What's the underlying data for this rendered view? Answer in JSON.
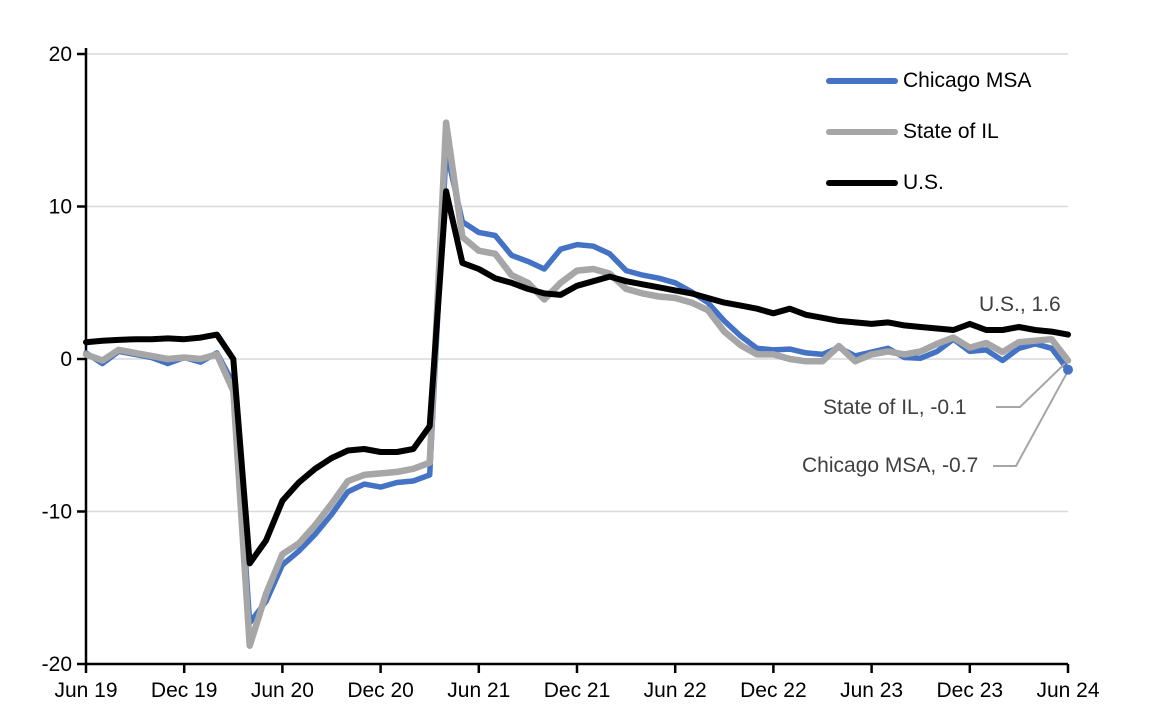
{
  "chart_data": {
    "type": "line",
    "x_monthly": [
      "2019-06",
      "2019-07",
      "2019-08",
      "2019-09",
      "2019-10",
      "2019-11",
      "2019-12",
      "2020-01",
      "2020-02",
      "2020-03",
      "2020-04",
      "2020-05",
      "2020-06",
      "2020-07",
      "2020-08",
      "2020-09",
      "2020-10",
      "2020-11",
      "2020-12",
      "2021-01",
      "2021-02",
      "2021-03",
      "2021-04",
      "2021-05",
      "2021-06",
      "2021-07",
      "2021-08",
      "2021-09",
      "2021-10",
      "2021-11",
      "2021-12",
      "2022-01",
      "2022-02",
      "2022-03",
      "2022-04",
      "2022-05",
      "2022-06",
      "2022-07",
      "2022-08",
      "2022-09",
      "2022-10",
      "2022-11",
      "2022-12",
      "2023-01",
      "2023-02",
      "2023-03",
      "2023-04",
      "2023-05",
      "2023-06",
      "2023-07",
      "2023-08",
      "2023-09",
      "2023-10",
      "2023-11",
      "2023-12",
      "2024-01",
      "2024-02",
      "2024-03",
      "2024-04",
      "2024-05",
      "2024-06"
    ],
    "x_tick_labels": [
      "Jun 19",
      "Dec 19",
      "Jun 20",
      "Dec 20",
      "Jun 21",
      "Dec 21",
      "Jun 22",
      "Dec 22",
      "Jun 23",
      "Dec 23",
      "Jun 24"
    ],
    "x_tick_indices": [
      0,
      6,
      12,
      18,
      24,
      30,
      36,
      42,
      48,
      54,
      60
    ],
    "ylim": [
      -20,
      20
    ],
    "yticks": [
      20,
      10,
      0,
      -10,
      -20
    ],
    "grid": "horizontal",
    "legend_position": "top-right-inside",
    "series": [
      {
        "name": "Chicago MSA",
        "color": "#4472C4",
        "end_value": -0.7,
        "values": [
          0.4,
          -0.3,
          0.5,
          0.3,
          0.1,
          -0.3,
          0.1,
          -0.2,
          0.4,
          -1.6,
          -17.3,
          -15.9,
          -13.5,
          -12.6,
          -11.5,
          -10.2,
          -8.7,
          -8.2,
          -8.4,
          -8.1,
          -8.0,
          -7.6,
          13.7,
          9.0,
          8.3,
          8.1,
          6.8,
          6.4,
          5.9,
          7.2,
          7.5,
          7.4,
          6.9,
          5.8,
          5.5,
          5.3,
          5.0,
          4.4,
          3.7,
          2.5,
          1.5,
          0.7,
          0.6,
          0.65,
          0.4,
          0.3,
          0.75,
          0.2,
          0.45,
          0.7,
          0.1,
          0.05,
          0.5,
          1.3,
          0.5,
          0.6,
          -0.1,
          0.7,
          1.0,
          0.7,
          -0.7
        ]
      },
      {
        "name": "State of IL",
        "color": "#A6A6A6",
        "end_value": -0.1,
        "values": [
          0.3,
          -0.1,
          0.6,
          0.4,
          0.2,
          0.0,
          0.1,
          0.0,
          0.3,
          -2.1,
          -18.8,
          -15.4,
          -12.8,
          -12.1,
          -10.9,
          -9.5,
          -8.0,
          -7.6,
          -7.5,
          -7.4,
          -7.2,
          -6.8,
          15.5,
          8.0,
          7.1,
          6.9,
          5.5,
          5.0,
          3.9,
          5.0,
          5.8,
          5.9,
          5.6,
          4.6,
          4.3,
          4.1,
          4.0,
          3.7,
          3.2,
          1.8,
          0.9,
          0.3,
          0.3,
          0.0,
          -0.15,
          -0.15,
          0.85,
          -0.15,
          0.3,
          0.5,
          0.3,
          0.5,
          1.0,
          1.4,
          0.75,
          1.05,
          0.45,
          1.1,
          1.2,
          1.3,
          -0.1
        ]
      },
      {
        "name": "U.S.",
        "color": "#000000",
        "end_value": 1.6,
        "values": [
          1.1,
          1.2,
          1.25,
          1.3,
          1.3,
          1.35,
          1.3,
          1.4,
          1.6,
          0.0,
          -13.4,
          -11.9,
          -9.3,
          -8.1,
          -7.2,
          -6.5,
          -6.0,
          -5.9,
          -6.1,
          -6.1,
          -5.9,
          -4.4,
          11.0,
          6.3,
          5.9,
          5.3,
          5.0,
          4.6,
          4.3,
          4.2,
          4.8,
          5.1,
          5.4,
          5.1,
          4.9,
          4.7,
          4.5,
          4.3,
          4.0,
          3.7,
          3.5,
          3.3,
          3.0,
          3.3,
          2.9,
          2.7,
          2.5,
          2.4,
          2.3,
          2.4,
          2.2,
          2.1,
          2.0,
          1.9,
          2.3,
          1.9,
          1.9,
          2.1,
          1.9,
          1.8,
          1.6
        ]
      }
    ],
    "annotations": [
      {
        "id": "us",
        "text": "U.S., 1.6"
      },
      {
        "id": "state-of-il",
        "text": "State of IL, -0.1"
      },
      {
        "id": "chicago-msa",
        "text": "Chicago MSA, -0.7"
      }
    ],
    "colors": {
      "grid": "#D9D9D9",
      "axis": "#000000",
      "annotation_text": "#404040",
      "leader_line": "#A6A6A6"
    }
  }
}
